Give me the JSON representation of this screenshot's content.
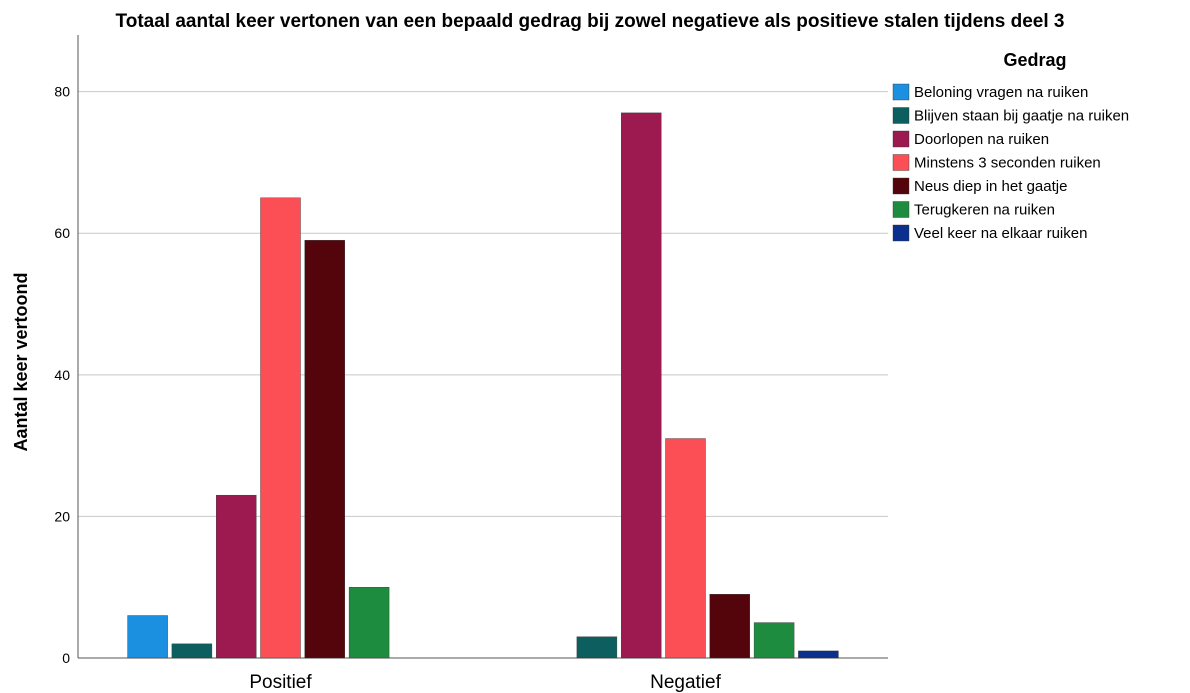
{
  "chart_data": {
    "type": "bar",
    "title": "Totaal aantal keer vertonen van een bepaald gedrag bij zowel negatieve als positieve stalen tijdens deel 3",
    "xlabel": "",
    "ylabel": "Aantal keer vertoond",
    "ylim": [
      0,
      88
    ],
    "yticks": [
      0,
      20,
      40,
      60,
      80
    ],
    "grid": true,
    "legend_title": "Gedrag",
    "legend_position": "top-right",
    "categories": [
      "Positief",
      "Negatief"
    ],
    "series": [
      {
        "name": "Beloning vragen na ruiken",
        "color": "#1b8fe0",
        "values": [
          6,
          null
        ]
      },
      {
        "name": "Blijven staan bij gaatje na ruiken",
        "color": "#0d5f5f",
        "values": [
          2,
          3
        ]
      },
      {
        "name": "Doorlopen na ruiken",
        "color": "#9c1a4f",
        "values": [
          23,
          77
        ]
      },
      {
        "name": "Minstens 3 seconden ruiken",
        "color": "#fb4f55",
        "values": [
          65,
          31
        ]
      },
      {
        "name": "Neus diep in het gaatje",
        "color": "#54040b",
        "values": [
          59,
          9
        ]
      },
      {
        "name": "Terugkeren na ruiken",
        "color": "#1e8c3e",
        "values": [
          10,
          5
        ]
      },
      {
        "name": "Veel keer na elkaar ruiken",
        "color": "#0b2f8f",
        "values": [
          null,
          1
        ]
      }
    ]
  }
}
